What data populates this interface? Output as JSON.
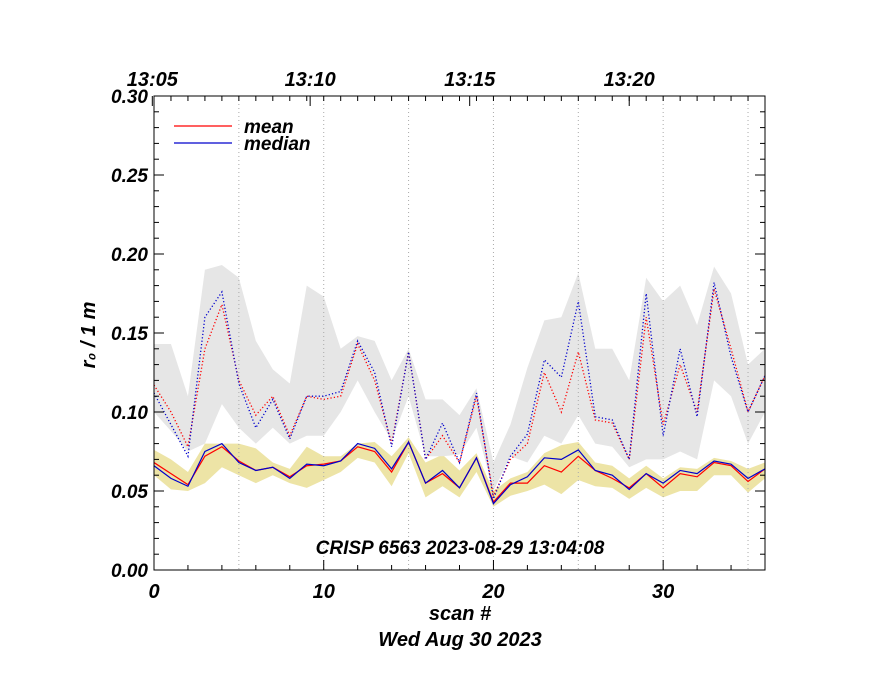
{
  "chart_data": {
    "type": "line",
    "annotation": "CRISP 6563 2023-08-29 13:04:08",
    "xlabel": "scan #",
    "date_label": "Wed Aug 30 2023",
    "ylabel": "r₀ / 1 m",
    "xlim": [
      0,
      36
    ],
    "ylim": [
      0,
      0.3
    ],
    "x_ticks": [
      0,
      10,
      20,
      30
    ],
    "x_tick_labels": [
      "0",
      "10",
      "20",
      "30"
    ],
    "y_ticks": [
      0.0,
      0.05,
      0.1,
      0.15,
      0.2,
      0.25,
      0.3
    ],
    "y_tick_labels": [
      "0.00",
      "0.05",
      "0.10",
      "0.15",
      "0.20",
      "0.25",
      "0.30"
    ],
    "top_axis": {
      "labels": [
        "13:05",
        "13:10",
        "13:15",
        "13:20"
      ],
      "positions": [
        -0.1,
        9.2,
        18.6,
        28.0
      ]
    },
    "time_markers": [
      5,
      10,
      15,
      20,
      25,
      30,
      35
    ],
    "legend": [
      {
        "name": "mean",
        "color": "#ff0000"
      },
      {
        "name": "median",
        "color": "#0000cc"
      }
    ],
    "colors": {
      "mean": "#ff0000",
      "median": "#0000cc",
      "lower_band": "#ede4a6",
      "upper_band": "#e6e6e6",
      "grid": "#aaaaaa"
    },
    "x": [
      0,
      1,
      2,
      3,
      4,
      5,
      6,
      7,
      8,
      9,
      10,
      11,
      12,
      13,
      14,
      15,
      16,
      17,
      18,
      19,
      20,
      21,
      22,
      23,
      24,
      25,
      26,
      27,
      28,
      29,
      30,
      31,
      32,
      33,
      34,
      35,
      36
    ],
    "series": [
      {
        "name": "mean",
        "style": "solid",
        "values": [
          0.068,
          0.061,
          0.054,
          0.072,
          0.078,
          0.069,
          0.063,
          0.065,
          0.059,
          0.066,
          0.067,
          0.069,
          0.078,
          0.075,
          0.062,
          0.081,
          0.055,
          0.061,
          0.052,
          0.071,
          0.043,
          0.055,
          0.055,
          0.066,
          0.062,
          0.072,
          0.063,
          0.058,
          0.052,
          0.061,
          0.052,
          0.061,
          0.059,
          0.068,
          0.066,
          0.056,
          0.064
        ]
      },
      {
        "name": "median",
        "style": "solid",
        "values": [
          0.066,
          0.058,
          0.053,
          0.075,
          0.08,
          0.068,
          0.063,
          0.065,
          0.058,
          0.067,
          0.066,
          0.069,
          0.08,
          0.077,
          0.064,
          0.081,
          0.055,
          0.063,
          0.052,
          0.071,
          0.042,
          0.054,
          0.059,
          0.071,
          0.07,
          0.076,
          0.063,
          0.06,
          0.051,
          0.061,
          0.055,
          0.063,
          0.061,
          0.069,
          0.067,
          0.058,
          0.064
        ]
      },
      {
        "name": "mean (upper)",
        "style": "dotted",
        "values": [
          0.117,
          0.1,
          0.078,
          0.14,
          0.168,
          0.12,
          0.098,
          0.11,
          0.085,
          0.11,
          0.108,
          0.11,
          0.143,
          0.12,
          0.08,
          0.138,
          0.07,
          0.085,
          0.068,
          0.11,
          0.047,
          0.07,
          0.08,
          0.125,
          0.1,
          0.138,
          0.095,
          0.093,
          0.07,
          0.16,
          0.092,
          0.13,
          0.1,
          0.178,
          0.14,
          0.1,
          0.123
        ]
      },
      {
        "name": "median (upper)",
        "style": "dotted",
        "values": [
          0.112,
          0.092,
          0.072,
          0.16,
          0.176,
          0.118,
          0.09,
          0.108,
          0.083,
          0.11,
          0.11,
          0.113,
          0.145,
          0.125,
          0.078,
          0.138,
          0.07,
          0.093,
          0.068,
          0.112,
          0.045,
          0.072,
          0.086,
          0.133,
          0.122,
          0.17,
          0.097,
          0.095,
          0.07,
          0.175,
          0.085,
          0.14,
          0.097,
          0.182,
          0.135,
          0.1,
          0.123
        ]
      }
    ],
    "bands": [
      {
        "name": "lower spread",
        "upper": [
          0.076,
          0.07,
          0.062,
          0.08,
          0.08,
          0.08,
          0.077,
          0.068,
          0.064,
          0.078,
          0.072,
          0.072,
          0.08,
          0.081,
          0.072,
          0.084,
          0.068,
          0.073,
          0.063,
          0.074,
          0.05,
          0.058,
          0.062,
          0.074,
          0.079,
          0.081,
          0.068,
          0.066,
          0.058,
          0.066,
          0.058,
          0.065,
          0.064,
          0.071,
          0.069,
          0.064,
          0.068
        ],
        "lower": [
          0.06,
          0.051,
          0.05,
          0.055,
          0.065,
          0.06,
          0.055,
          0.06,
          0.055,
          0.052,
          0.057,
          0.062,
          0.071,
          0.068,
          0.053,
          0.074,
          0.046,
          0.053,
          0.046,
          0.062,
          0.04,
          0.047,
          0.05,
          0.054,
          0.048,
          0.057,
          0.053,
          0.052,
          0.045,
          0.052,
          0.046,
          0.05,
          0.05,
          0.06,
          0.06,
          0.049,
          0.058
        ]
      },
      {
        "name": "upper spread",
        "upper": [
          0.143,
          0.143,
          0.11,
          0.19,
          0.193,
          0.185,
          0.145,
          0.127,
          0.118,
          0.18,
          0.173,
          0.14,
          0.148,
          0.145,
          0.12,
          0.14,
          0.108,
          0.108,
          0.098,
          0.115,
          0.068,
          0.092,
          0.128,
          0.158,
          0.16,
          0.188,
          0.14,
          0.14,
          0.12,
          0.185,
          0.17,
          0.18,
          0.155,
          0.192,
          0.175,
          0.13,
          0.14
        ],
        "lower": [
          0.1,
          0.088,
          0.075,
          0.08,
          0.105,
          0.09,
          0.08,
          0.09,
          0.08,
          0.085,
          0.085,
          0.1,
          0.12,
          0.1,
          0.082,
          0.11,
          0.072,
          0.072,
          0.073,
          0.09,
          0.05,
          0.072,
          0.068,
          0.085,
          0.08,
          0.098,
          0.08,
          0.078,
          0.065,
          0.07,
          0.07,
          0.075,
          0.07,
          0.12,
          0.11,
          0.08,
          0.1
        ]
      }
    ]
  }
}
